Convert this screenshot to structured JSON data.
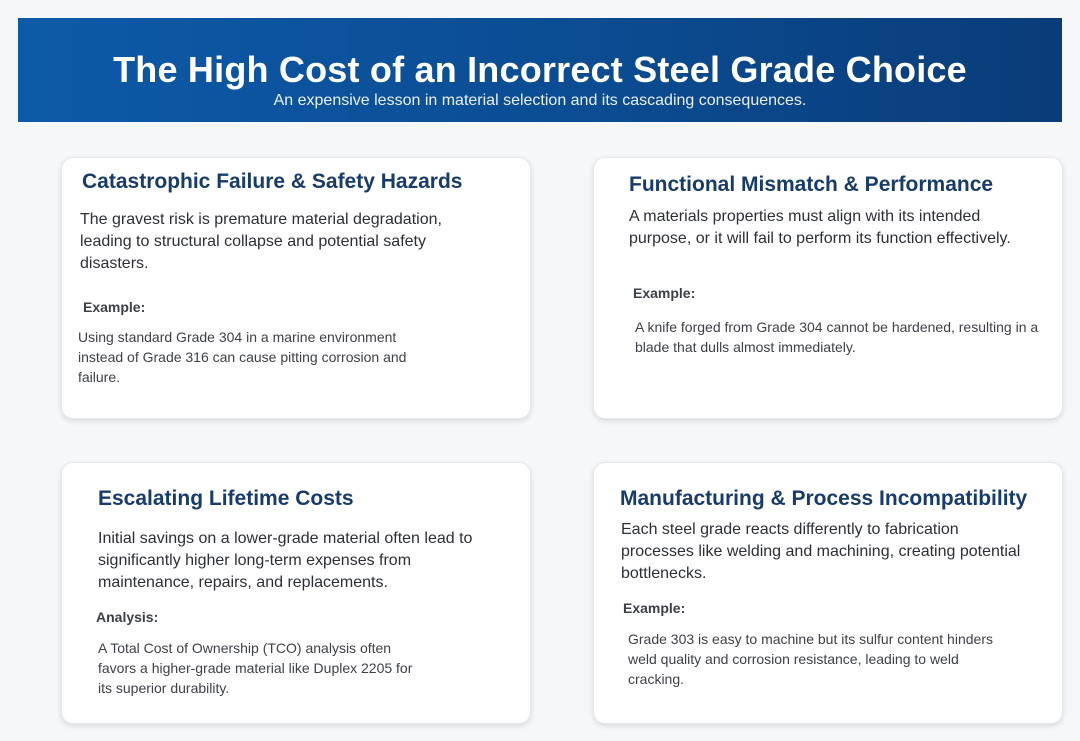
{
  "header": {
    "title": "The High Cost of an Incorrect Steel Grade Choice",
    "subtitle": "An expensive lesson in material selection and its cascading consequences."
  },
  "cards": [
    {
      "title": "Catastrophic Failure & Safety Hazards",
      "description": "The gravest risk is premature material degradation, leading to structural collapse and potential safety disasters.",
      "label": "Example:",
      "example": "Using standard Grade 304 in a marine environment instead of Grade 316 can cause pitting corrosion and failure."
    },
    {
      "title": "Functional Mismatch & Performance",
      "description": "A materials properties must align with its intended purpose, or it will fail to perform its function effectively.",
      "label": "Example:",
      "example": "A knife forged from Grade 304 cannot be hardened, resulting in a blade that dulls almost immediately."
    },
    {
      "title": "Escalating Lifetime Costs",
      "description": "Initial savings on a lower-grade material often lead to significantly higher long-term expenses from maintenance, repairs, and replacements.",
      "label": "Analysis:",
      "example": "A Total Cost of Ownership (TCO) analysis often favors a higher-grade material like Duplex 2205 for its superior durability."
    },
    {
      "title": "Manufacturing & Process Incompatibility",
      "description": "Each steel grade reacts differently to fabrication processes like welding and machining, creating potential bottlenecks.",
      "label": "Example:",
      "example": "Grade 303 is easy to machine but its sulfur content hinders weld quality and corrosion resistance, leading to weld cracking."
    }
  ],
  "colors": {
    "banner_start": "#0d5aa8",
    "banner_end": "#0a3c78",
    "card_title": "#173c6b",
    "page_background": "#f6f7f9"
  }
}
